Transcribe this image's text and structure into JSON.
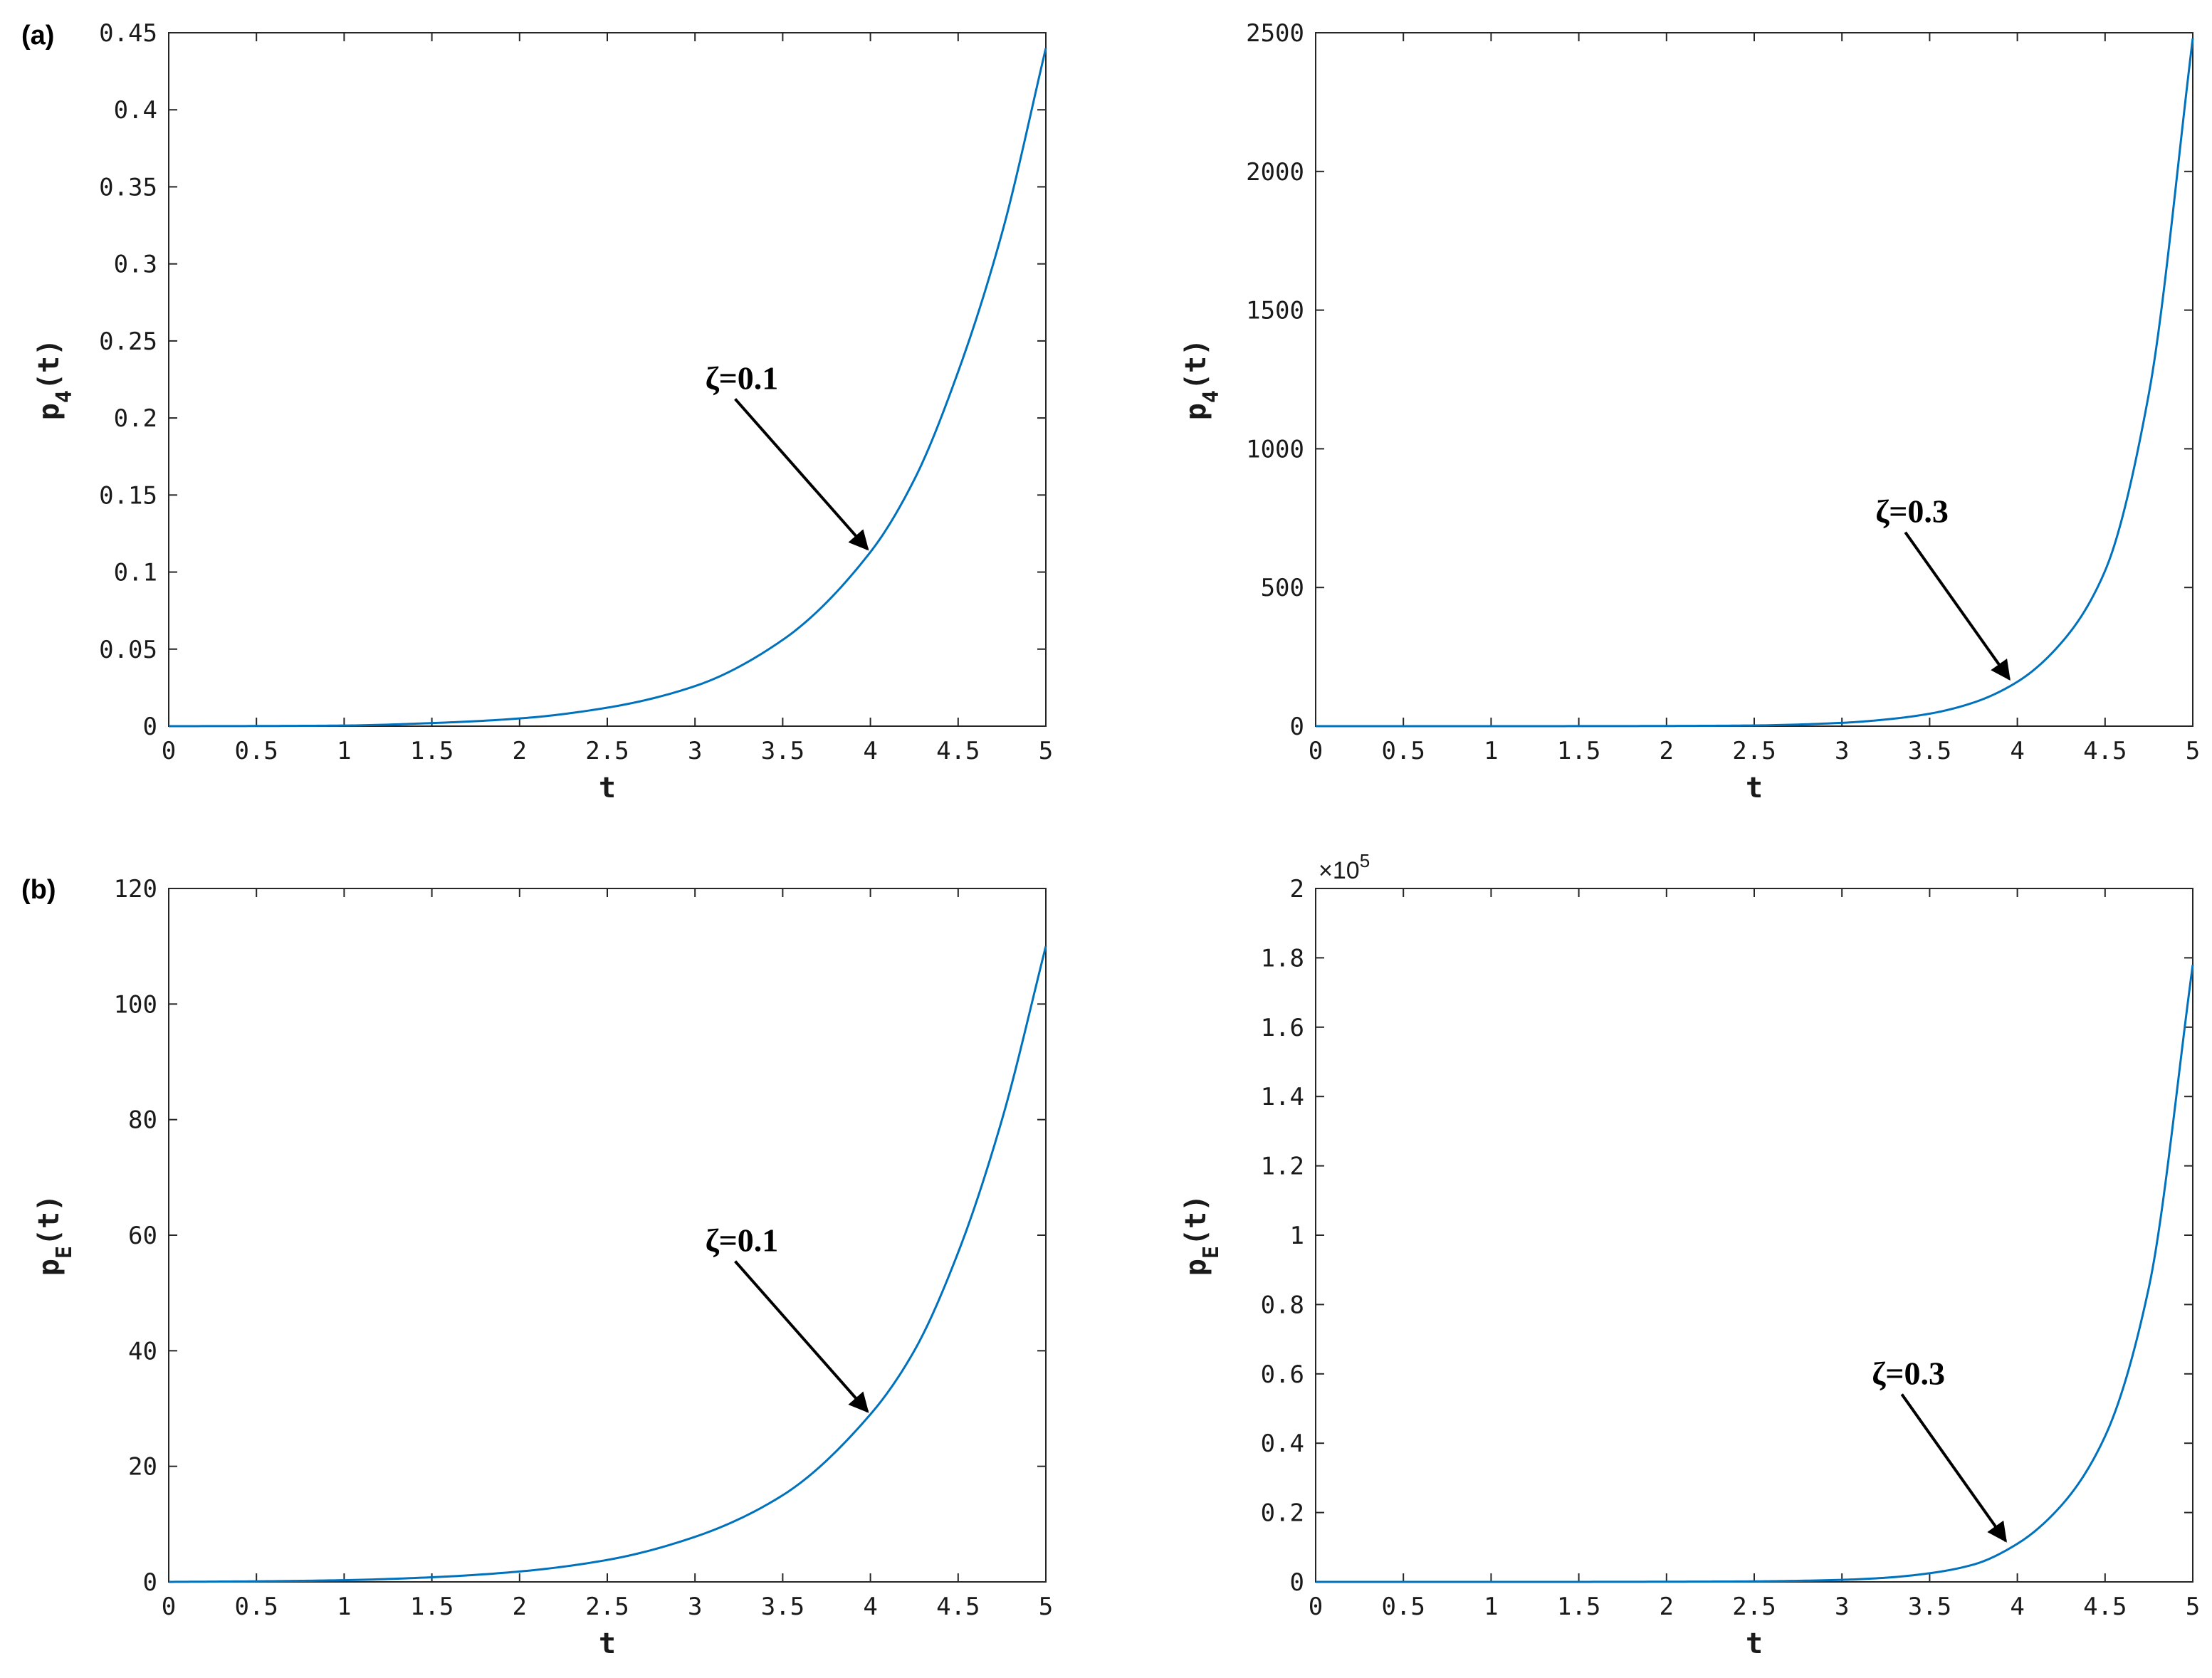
{
  "colors": {
    "line": "#0072BD",
    "axis": "#262626",
    "annotation": "#000000"
  },
  "panel_labels": {
    "a": "(a)",
    "b": "(b)"
  },
  "chart_data": [
    {
      "type": "line",
      "panel": "(a)",
      "xlabel": "t",
      "ylabel": {
        "base": "p",
        "sub": "4",
        "arg": "(t)"
      },
      "xlim": [
        0,
        5
      ],
      "ylim": [
        0,
        0.45
      ],
      "xticks": [
        "0",
        "0.5",
        "1",
        "1.5",
        "2",
        "2.5",
        "3",
        "3.5",
        "4",
        "4.5",
        "5"
      ],
      "yticks": [
        "0",
        "0.05",
        "0.1",
        "0.15",
        "0.2",
        "0.25",
        "0.3",
        "0.35",
        "0.4",
        "0.45"
      ],
      "series": [
        {
          "x": [
            0,
            0.5,
            1,
            1.5,
            2,
            2.5,
            3,
            3.5,
            4,
            4.25,
            4.5,
            4.75,
            5
          ],
          "y": [
            0,
            0.0001,
            0.0004,
            0.002,
            0.005,
            0.012,
            0.026,
            0.056,
            0.113,
            0.16,
            0.23,
            0.32,
            0.44
          ]
        }
      ],
      "annotation": {
        "text": "ζ=0.1",
        "point": [
          4.0,
          0.113
        ]
      },
      "exponent_label": "",
      "grid": false
    },
    {
      "type": "line",
      "panel": "",
      "xlabel": "t",
      "ylabel": {
        "base": "p",
        "sub": "4",
        "arg": "(t)"
      },
      "xlim": [
        0,
        5
      ],
      "ylim": [
        0,
        2500
      ],
      "xticks": [
        "0",
        "0.5",
        "1",
        "1.5",
        "2",
        "2.5",
        "3",
        "3.5",
        "4",
        "4.5",
        "5"
      ],
      "yticks": [
        "0",
        "500",
        "1000",
        "1500",
        "2000",
        "2500"
      ],
      "series": [
        {
          "x": [
            0,
            0.5,
            1,
            1.5,
            2,
            2.5,
            3,
            3.25,
            3.5,
            3.75,
            4,
            4.25,
            4.5,
            4.75,
            5
          ],
          "y": [
            0,
            0,
            0.05,
            0.2,
            0.7,
            2.5,
            12,
            24,
            45,
            85,
            160,
            300,
            560,
            1200,
            2480
          ]
        }
      ],
      "annotation": {
        "text": "ζ=0.3",
        "point": [
          3.97,
          160
        ]
      },
      "exponent_label": "",
      "grid": false
    },
    {
      "type": "line",
      "panel": "(b)",
      "xlabel": "t",
      "ylabel": {
        "base": "p",
        "sub": "E",
        "arg": "(t)"
      },
      "xlim": [
        0,
        5
      ],
      "ylim": [
        0,
        120
      ],
      "xticks": [
        "0",
        "0.5",
        "1",
        "1.5",
        "2",
        "2.5",
        "3",
        "3.5",
        "4",
        "4.5",
        "5"
      ],
      "yticks": [
        "0",
        "20",
        "40",
        "60",
        "80",
        "100",
        "120"
      ],
      "series": [
        {
          "x": [
            0,
            0.5,
            1,
            1.5,
            2,
            2.5,
            3,
            3.5,
            4,
            4.25,
            4.5,
            4.75,
            5
          ],
          "y": [
            0,
            0.1,
            0.3,
            0.8,
            1.8,
            3.8,
            7.8,
            15,
            29,
            40,
            57,
            80,
            110
          ]
        }
      ],
      "annotation": {
        "text": "ζ=0.1",
        "point": [
          4.0,
          29
        ]
      },
      "exponent_label": "",
      "grid": false
    },
    {
      "type": "line",
      "panel": "",
      "xlabel": "t",
      "ylabel": {
        "base": "p",
        "sub": "E",
        "arg": "(t)"
      },
      "xlim": [
        0,
        5
      ],
      "ylim": [
        0,
        2
      ],
      "xticks": [
        "0",
        "0.5",
        "1",
        "1.5",
        "2",
        "2.5",
        "3",
        "3.5",
        "4",
        "4.5",
        "5"
      ],
      "yticks": [
        "0",
        "0.2",
        "0.4",
        "0.6",
        "0.8",
        "1",
        "1.2",
        "1.4",
        "1.6",
        "1.8",
        "2"
      ],
      "series": [
        {
          "x": [
            0,
            0.5,
            1,
            1.5,
            2,
            2.5,
            3,
            3.25,
            3.5,
            3.75,
            4,
            4.25,
            4.5,
            4.75,
            5
          ],
          "y": [
            0,
            0,
            0,
            0.0001,
            0.0005,
            0.0015,
            0.006,
            0.012,
            0.025,
            0.05,
            0.11,
            0.22,
            0.42,
            0.85,
            1.78
          ]
        }
      ],
      "annotation": {
        "text": "ζ=0.3",
        "point": [
          3.95,
          0.11
        ]
      },
      "exponent_label": {
        "prefix": "×10",
        "power": "5"
      },
      "grid": false
    }
  ]
}
